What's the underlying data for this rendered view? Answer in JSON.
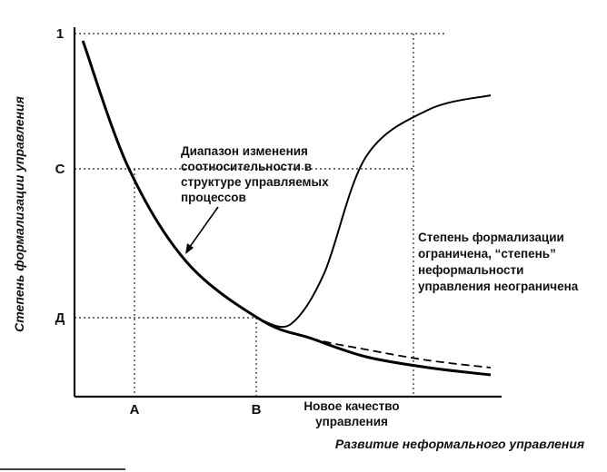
{
  "chart_data": {
    "type": "line",
    "title": "",
    "xlabel": "Развитие неформального управления",
    "ylabel": "Степень формализации управления",
    "y_ticks": [
      "1",
      "С",
      "Д"
    ],
    "x_ticks": [
      "А",
      "В"
    ],
    "annotations": {
      "range": [
        "Диапазон изменения",
        "соотносительности в",
        "структуре управляемых",
        "процессов"
      ],
      "limit": [
        "Степень формализации",
        "ограничена, “степень”",
        "неформальности",
        "управления неограничена"
      ],
      "new_quality": [
        "Новое качество",
        "управления"
      ]
    },
    "series": [
      {
        "style": "solid-thick",
        "values": [
          [
            0.02,
            0.98
          ],
          [
            0.13,
            0.63
          ],
          [
            0.27,
            0.37
          ],
          [
            0.45,
            0.21
          ],
          [
            0.57,
            0.16
          ],
          [
            0.7,
            0.11
          ],
          [
            0.85,
            0.08
          ],
          [
            1.0,
            0.06
          ]
        ]
      },
      {
        "style": "dashed",
        "values": [
          [
            0.02,
            0.98
          ],
          [
            0.13,
            0.63
          ],
          [
            0.27,
            0.37
          ],
          [
            0.45,
            0.21
          ],
          [
            0.57,
            0.16
          ],
          [
            0.7,
            0.13
          ],
          [
            0.85,
            0.1
          ],
          [
            1.0,
            0.08
          ]
        ]
      },
      {
        "style": "solid-thin",
        "values": [
          [
            0.45,
            0.21
          ],
          [
            0.52,
            0.2
          ],
          [
            0.6,
            0.34
          ],
          [
            0.7,
            0.66
          ],
          [
            0.85,
            0.79
          ],
          [
            1.0,
            0.83
          ]
        ]
      }
    ]
  }
}
